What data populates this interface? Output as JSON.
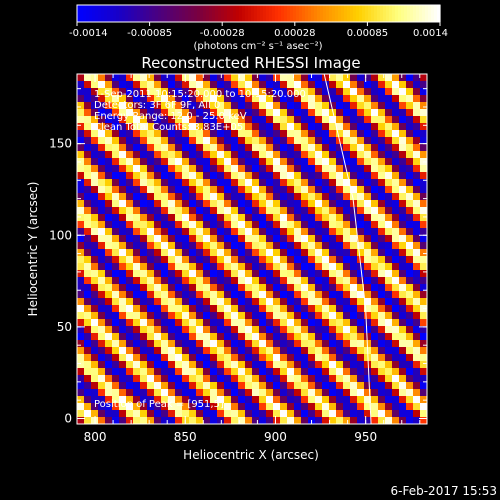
{
  "chart_data": {
    "type": "heatmap",
    "title": "Reconstructed RHESSI Image",
    "xlabel": "Heliocentric X (arcsec)",
    "ylabel": "Heliocentric Y (arcsec)",
    "xlim": [
      790,
      984
    ],
    "ylim": [
      -3,
      188
    ],
    "x_ticks": [
      800,
      850,
      900,
      950
    ],
    "y_ticks": [
      0,
      50,
      100,
      150
    ],
    "grid": false,
    "colorbar": {
      "ticks": [
        "-0.0014",
        "-0.00085",
        "-0.00028",
        "0.00028",
        "0.00085",
        "0.0014"
      ],
      "range": [
        -0.0014,
        0.0014
      ],
      "label": "(photons cm⁻² s⁻¹ asec⁻²)",
      "colormap": [
        "#0000ff",
        "#1800c8",
        "#4b0080",
        "#7a0040",
        "#c00000",
        "#ff3000",
        "#ff8800",
        "#ffd000",
        "#ffff80",
        "#ffffff"
      ]
    },
    "pattern": {
      "description_free": true,
      "stripe_period_pixels": 7,
      "amplitude": 0.0014
    },
    "annotations": [
      "1-Sep-2011 10:15:20.000 to 10:15:20.000",
      "Detectors: 3F 6F 9F, All 0",
      "Energy Range: 12.0 - 25.0 keV",
      "Clean    Total Counts: 3.83E+05",
      "Position of Peak = [951,5]"
    ],
    "limb_curve": [
      [
        927,
        188
      ],
      [
        943,
        120
      ],
      [
        950,
        60
      ],
      [
        953,
        -3
      ]
    ],
    "timestamp": "6-Feb-2017 15:53"
  }
}
